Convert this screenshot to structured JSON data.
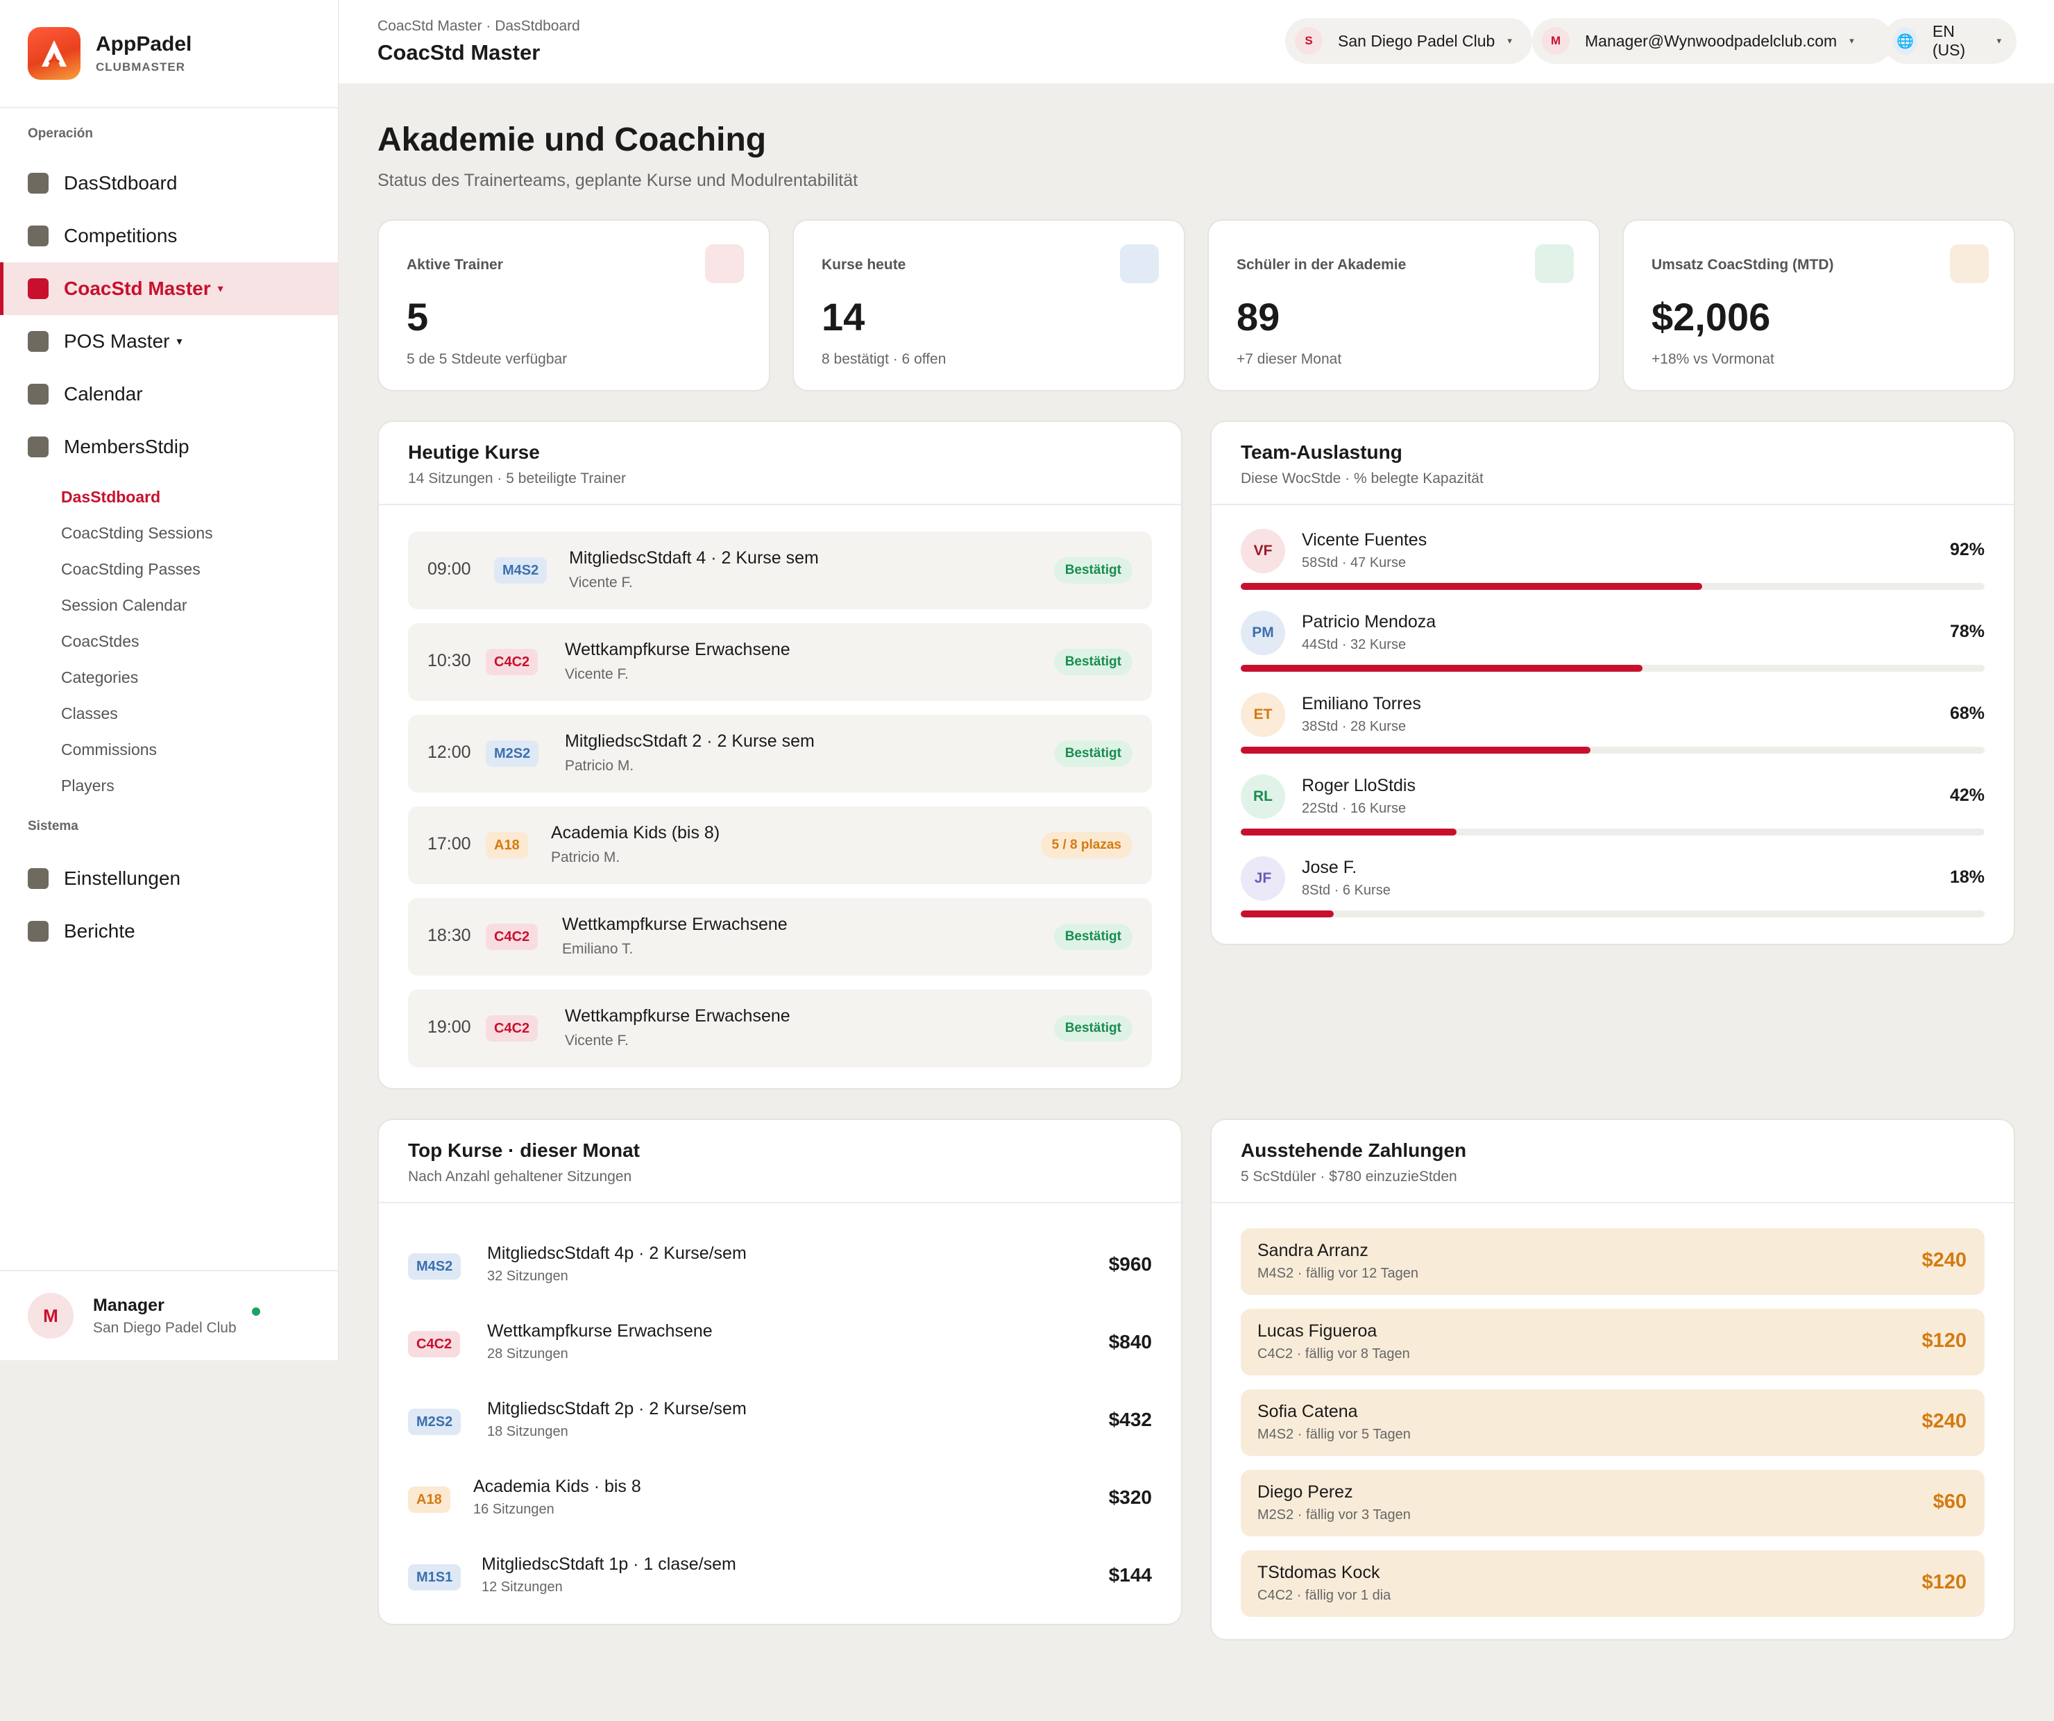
{
  "brand": {
    "name": "AppPadel",
    "sub": "CLUBMASTER"
  },
  "sidebar": {
    "section_operacion": "Operación",
    "section_sistema": "Sistema",
    "items": [
      {
        "label": "DasStdboard"
      },
      {
        "label": "Competitions"
      },
      {
        "label": "CoacStd Master",
        "caret": "▾"
      },
      {
        "label": "POS Master",
        "caret": "▾"
      },
      {
        "label": "Calendar"
      },
      {
        "label": "MembersStdip"
      }
    ],
    "sub_items": [
      {
        "label": "DasStdboard"
      },
      {
        "label": "CoacStding Sessions"
      },
      {
        "label": "CoacStding Passes"
      },
      {
        "label": "Session Calendar"
      },
      {
        "label": "CoacStdes"
      },
      {
        "label": "Categories"
      },
      {
        "label": "Classes"
      },
      {
        "label": "Commissions"
      },
      {
        "label": "Players"
      }
    ],
    "system_items": [
      {
        "label": "Einstellungen"
      },
      {
        "label": "Berichte"
      }
    ],
    "footer": {
      "initial": "M",
      "name": "Manager",
      "club": "San Diego Padel Club"
    }
  },
  "topbar": {
    "breadcrumb": "CoacStd Master · DasStdboard",
    "title": "CoacStd Master",
    "club": {
      "initial": "S",
      "label": "San Diego Padel Club",
      "caret": "▾"
    },
    "user": {
      "initial": "M",
      "label": "Manager@Wynwoodpadelclub.com",
      "caret": "▾"
    },
    "lang": {
      "icon": "globe-icon",
      "glyph": "🌐",
      "label": "EN (US)",
      "caret": "▾"
    }
  },
  "page": {
    "title": "Akademie und Coaching",
    "subtitle": "Status des Trainerteams, geplante Kurse und Modulrentabilität"
  },
  "stats": [
    {
      "label": "Aktive Trainer",
      "value": "5",
      "note": "5 de 5 Stdeute verfügbar",
      "chip_color": "#f9e4e6"
    },
    {
      "label": "Kurse heute",
      "value": "14",
      "note": "8 bestätigt · 6 offen",
      "chip_color": "#e2eaf6"
    },
    {
      "label": "Schüler in der Akademie",
      "value": "89",
      "note": "+7 dieser Monat",
      "chip_color": "#e1f3e8"
    },
    {
      "label": "Umsatz CoacStding (MTD)",
      "value": "$2,006",
      "note": "+18% vs Vormonat",
      "chip_color": "#f9ecdc"
    }
  ],
  "today_classes": {
    "title": "Heutige Kurse",
    "subtitle": "14 Sitzungen · 5 beteiligte Trainer",
    "rows": [
      {
        "time": "09:00",
        "code": "M4S2",
        "name": "MitgliedscStdaft 4 · 2 Kurse sem",
        "trainer": "Vicente F.",
        "status": "Bestätigt"
      },
      {
        "time": "10:30",
        "code": "C4C2",
        "name": "Wettkampfkurse Erwachsene",
        "trainer": "Vicente F.",
        "status": "Bestätigt"
      },
      {
        "time": "12:00",
        "code": "M2S2",
        "name": "MitgliedscStdaft 2 · 2 Kurse sem",
        "trainer": "Patricio M.",
        "status": "Bestätigt"
      },
      {
        "time": "17:00",
        "code": "A18",
        "name": "Academia Kids (bis 8)",
        "trainer": "Patricio M.",
        "status": "5 / 8 plazas"
      },
      {
        "time": "18:30",
        "code": "C4C2",
        "name": "Wettkampfkurse Erwachsene",
        "trainer": "Emiliano T.",
        "status": "Bestätigt"
      },
      {
        "time": "19:00",
        "code": "C4C2",
        "name": "Wettkampfkurse Erwachsene",
        "trainer": "Vicente F.",
        "status": "Bestätigt"
      }
    ]
  },
  "team": {
    "title": "Team-Auslastung",
    "subtitle": "Diese WocStde · % belegte Kapazität",
    "rows": [
      {
        "initials": "VF",
        "name": "Vicente Fuentes",
        "meta": "58Std · 47 Kurse",
        "pct_label": "92%",
        "fill": 0.62
      },
      {
        "initials": "PM",
        "name": "Patricio Mendoza",
        "meta": "44Std · 32 Kurse",
        "pct_label": "78%",
        "fill": 0.54
      },
      {
        "initials": "ET",
        "name": "Emiliano Torres",
        "meta": "38Std · 28 Kurse",
        "pct_label": "68%",
        "fill": 0.47
      },
      {
        "initials": "RL",
        "name": "Roger LloStdis",
        "meta": "22Std · 16 Kurse",
        "pct_label": "42%",
        "fill": 0.29
      },
      {
        "initials": "JF",
        "name": "Jose F.",
        "meta": "8Std · 6 Kurse",
        "pct_label": "18%",
        "fill": 0.125
      }
    ]
  },
  "top_classes": {
    "title": "Top Kurse · dieser Monat",
    "subtitle": "Nach Anzahl gehaltener Sitzungen",
    "rows": [
      {
        "code": "M4S2",
        "name": "MitgliedscStdaft 4p · 2 Kurse/sem",
        "sessions": "32 Sitzungen",
        "amount": "$960"
      },
      {
        "code": "C4C2",
        "name": "Wettkampfkurse Erwachsene",
        "sessions": "28 Sitzungen",
        "amount": "$840"
      },
      {
        "code": "M2S2",
        "name": "MitgliedscStdaft 2p · 2 Kurse/sem",
        "sessions": "18 Sitzungen",
        "amount": "$432"
      },
      {
        "code": "A18",
        "name": "Academia Kids · bis 8",
        "sessions": "16 Sitzungen",
        "amount": "$320"
      },
      {
        "code": "M1S1",
        "name": "MitgliedscStdaft 1p · 1 clase/sem",
        "sessions": "12 Sitzungen",
        "amount": "$144"
      }
    ]
  },
  "payments": {
    "title": "Ausstehende Zahlungen",
    "subtitle": "5 ScStdüler · $780 einzuzieStden",
    "rows": [
      {
        "name": "Sandra Arranz",
        "meta": "M4S2 · fällig vor 12 Tagen",
        "amount": "$240"
      },
      {
        "name": "Lucas Figueroa",
        "meta": "C4C2 · fällig vor 8 Tagen",
        "amount": "$120"
      },
      {
        "name": "Sofia Catena",
        "meta": "M4S2 · fällig vor 5 Tagen",
        "amount": "$240"
      },
      {
        "name": "Diego Perez",
        "meta": "M2S2 · fällig vor 3 Tagen",
        "amount": "$60"
      },
      {
        "name": "TStdomas Kock",
        "meta": "C4C2 · fällig vor 1 dia",
        "amount": "$120"
      }
    ]
  },
  "colors": {
    "accent": "#c8102e",
    "success": "#1a8c4f",
    "warning": "#d47a10"
  }
}
